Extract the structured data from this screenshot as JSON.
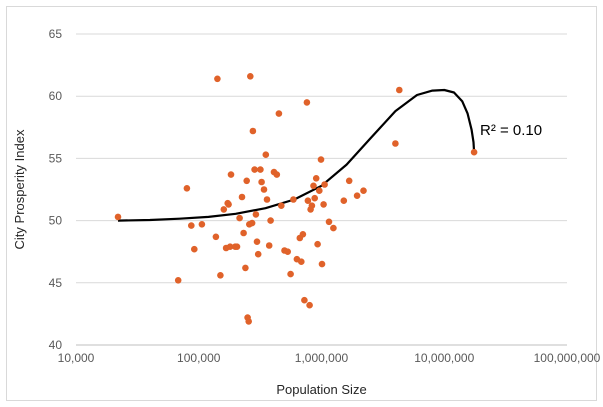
{
  "chart_data": {
    "type": "scatter",
    "xlabel": "Population Size",
    "ylabel": "City Prosperity Index",
    "x_scale": "log",
    "xlim": [
      10000,
      100000000
    ],
    "ylim": [
      40,
      65
    ],
    "grid": true,
    "x_ticks": [
      "10,000",
      "100,000",
      "1,000,000",
      "10,000,000",
      "100,000,000"
    ],
    "y_ticks": [
      "40",
      "45",
      "50",
      "55",
      "60",
      "65"
    ],
    "marker_color": "#e0622a",
    "trendline_color": "#000000",
    "annotation": "R² = 0.10",
    "points": [
      [
        22000,
        50.3
      ],
      [
        68000,
        45.2
      ],
      [
        80000,
        52.6
      ],
      [
        87000,
        49.6
      ],
      [
        92000,
        47.7
      ],
      [
        106000,
        49.7
      ],
      [
        138000,
        48.7
      ],
      [
        142000,
        61.4
      ],
      [
        150000,
        45.6
      ],
      [
        160000,
        50.9
      ],
      [
        167000,
        47.8
      ],
      [
        172000,
        51.4
      ],
      [
        175000,
        51.3
      ],
      [
        180000,
        47.9
      ],
      [
        183000,
        53.7
      ],
      [
        198000,
        47.9
      ],
      [
        205000,
        47.9
      ],
      [
        215000,
        50.2
      ],
      [
        225000,
        51.9
      ],
      [
        232000,
        49.0
      ],
      [
        240000,
        46.2
      ],
      [
        246000,
        53.2
      ],
      [
        250000,
        42.2
      ],
      [
        255000,
        41.9
      ],
      [
        258000,
        49.7
      ],
      [
        263000,
        61.6
      ],
      [
        272000,
        49.8
      ],
      [
        276000,
        57.2
      ],
      [
        285000,
        54.1
      ],
      [
        292000,
        50.5
      ],
      [
        298000,
        48.3
      ],
      [
        305000,
        47.3
      ],
      [
        318000,
        54.1
      ],
      [
        325000,
        53.1
      ],
      [
        340000,
        52.5
      ],
      [
        352000,
        55.3
      ],
      [
        360000,
        51.7
      ],
      [
        375000,
        48.0
      ],
      [
        385000,
        50.0
      ],
      [
        410000,
        53.9
      ],
      [
        432000,
        53.7
      ],
      [
        450000,
        58.6
      ],
      [
        470000,
        51.2
      ],
      [
        500000,
        47.6
      ],
      [
        530000,
        47.5
      ],
      [
        560000,
        45.7
      ],
      [
        590000,
        51.7
      ],
      [
        630000,
        46.9
      ],
      [
        665000,
        48.6
      ],
      [
        685000,
        46.7
      ],
      [
        705000,
        48.9
      ],
      [
        725000,
        43.6
      ],
      [
        760000,
        59.5
      ],
      [
        775000,
        51.6
      ],
      [
        800000,
        43.2
      ],
      [
        815000,
        50.9
      ],
      [
        835000,
        51.2
      ],
      [
        860000,
        52.8
      ],
      [
        880000,
        51.8
      ],
      [
        905000,
        53.4
      ],
      [
        930000,
        48.1
      ],
      [
        960000,
        52.4
      ],
      [
        990000,
        54.9
      ],
      [
        1010000,
        46.5
      ],
      [
        1040000,
        51.3
      ],
      [
        1060000,
        52.9
      ],
      [
        1150000,
        49.9
      ],
      [
        1250000,
        49.4
      ],
      [
        1520000,
        51.6
      ],
      [
        1680000,
        53.2
      ],
      [
        1950000,
        52.0
      ],
      [
        2200000,
        52.4
      ],
      [
        4000000,
        56.2
      ],
      [
        4300000,
        60.5
      ],
      [
        17500000,
        55.5
      ]
    ],
    "trendline_points": [
      [
        22000,
        50.0
      ],
      [
        40000,
        50.05
      ],
      [
        70000,
        50.15
      ],
      [
        120000,
        50.3
      ],
      [
        200000,
        50.55
      ],
      [
        350000,
        51.0
      ],
      [
        600000,
        51.7
      ],
      [
        1000000,
        52.8
      ],
      [
        1600000,
        54.5
      ],
      [
        2500000,
        56.6
      ],
      [
        4000000,
        58.8
      ],
      [
        6000000,
        60.1
      ],
      [
        8000000,
        60.45
      ],
      [
        10000000,
        60.5
      ],
      [
        12000000,
        60.3
      ],
      [
        14000000,
        59.6
      ],
      [
        15500000,
        58.6
      ],
      [
        16700000,
        57.3
      ],
      [
        17300000,
        56.3
      ],
      [
        17500000,
        55.5
      ]
    ]
  }
}
